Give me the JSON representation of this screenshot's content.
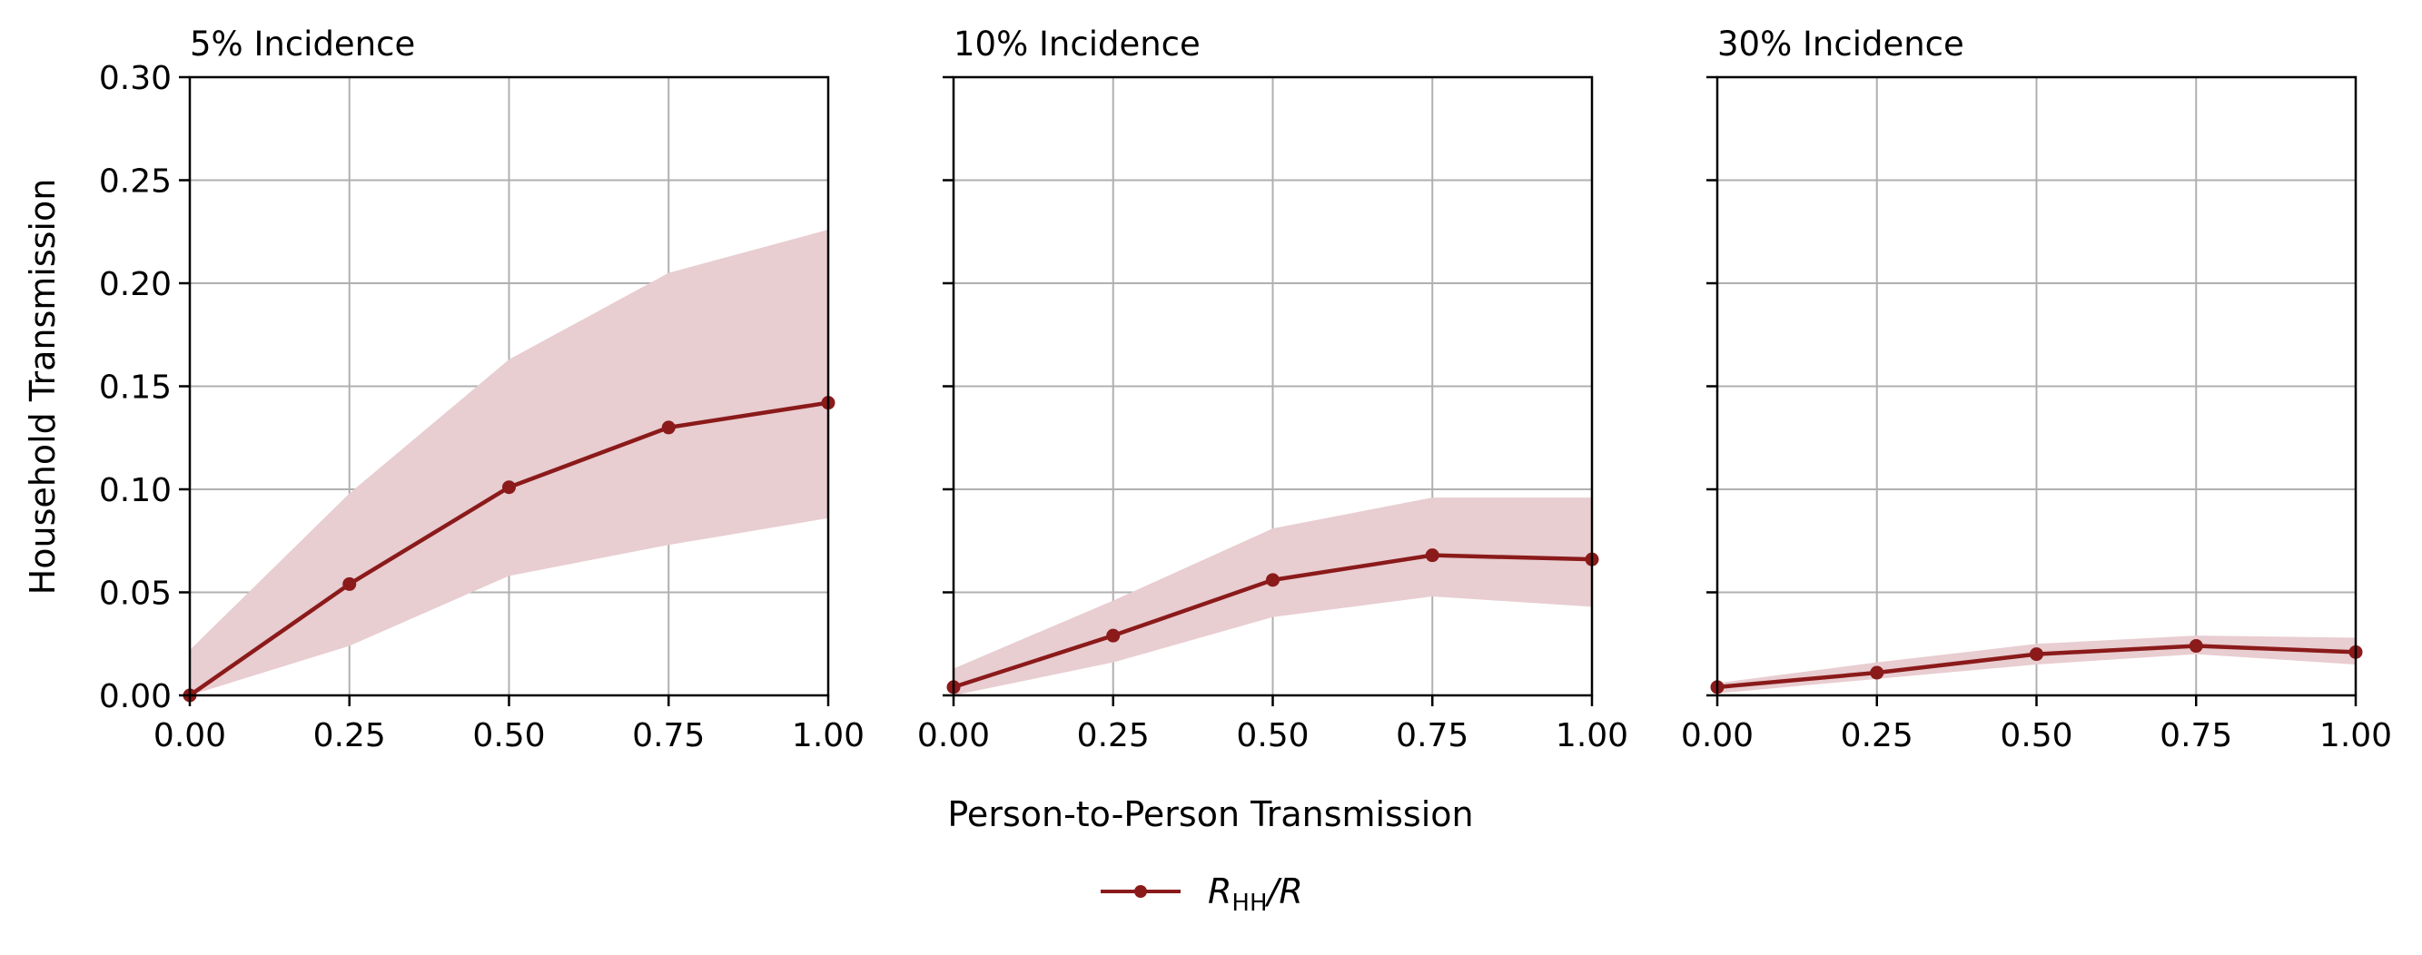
{
  "figure": {
    "xlabel": "Person-to-Person Transmission",
    "ylabel": "Household Transmission",
    "legend": {
      "label_main": "R",
      "label_sub": "HH",
      "label_tail": "/R",
      "placement": "bottom-center"
    },
    "colors": {
      "line": "#8b1a1a",
      "band": "#e8cdd1",
      "grid": "#b0b0b0",
      "axis": "#000000"
    }
  },
  "chart_data": [
    {
      "type": "line",
      "title": "5% Incidence",
      "xlabel": "Person-to-Person Transmission",
      "ylabel": "Household Transmission",
      "xlim": [
        0,
        1
      ],
      "ylim": [
        0,
        0.3
      ],
      "x_ticks": [
        "0.00",
        "0.25",
        "0.50",
        "0.75",
        "1.00"
      ],
      "y_ticks": [
        "0.00",
        "0.05",
        "0.10",
        "0.15",
        "0.20",
        "0.25",
        "0.30"
      ],
      "grid": true,
      "series": [
        {
          "name": "R_HH/R",
          "x": [
            0,
            0.25,
            0.5,
            0.75,
            1.0
          ],
          "values": [
            0.0,
            0.054,
            0.101,
            0.13,
            0.142
          ],
          "lower": [
            0.0,
            0.024,
            0.058,
            0.073,
            0.086
          ],
          "upper": [
            0.022,
            0.098,
            0.163,
            0.205,
            0.226
          ]
        }
      ]
    },
    {
      "type": "line",
      "title": "10% Incidence",
      "xlabel": "Person-to-Person Transmission",
      "xlim": [
        0,
        1
      ],
      "ylim": [
        0,
        0.3
      ],
      "x_ticks": [
        "0.00",
        "0.25",
        "0.50",
        "0.75",
        "1.00"
      ],
      "grid": true,
      "series": [
        {
          "name": "R_HH/R",
          "x": [
            0,
            0.25,
            0.5,
            0.75,
            1.0
          ],
          "values": [
            0.004,
            0.029,
            0.056,
            0.068,
            0.066
          ],
          "lower": [
            0.0,
            0.016,
            0.038,
            0.048,
            0.043
          ],
          "upper": [
            0.013,
            0.046,
            0.081,
            0.096,
            0.096
          ]
        }
      ]
    },
    {
      "type": "line",
      "title": "30% Incidence",
      "xlabel": "Person-to-Person Transmission",
      "xlim": [
        0,
        1
      ],
      "ylim": [
        0,
        0.3
      ],
      "x_ticks": [
        "0.00",
        "0.25",
        "0.50",
        "0.75",
        "1.00"
      ],
      "grid": true,
      "series": [
        {
          "name": "R_HH/R",
          "x": [
            0,
            0.25,
            0.5,
            0.75,
            1.0
          ],
          "values": [
            0.004,
            0.011,
            0.02,
            0.024,
            0.021
          ],
          "lower": [
            0.001,
            0.008,
            0.015,
            0.02,
            0.015
          ],
          "upper": [
            0.006,
            0.016,
            0.025,
            0.029,
            0.028
          ]
        }
      ]
    }
  ]
}
